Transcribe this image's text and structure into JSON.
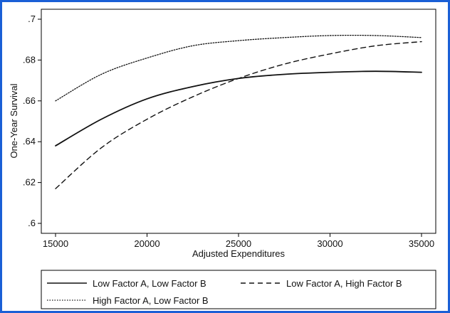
{
  "frame_color": "#1a5fd6",
  "chart_data": {
    "type": "line",
    "title": "",
    "xlabel": "Adjusted Expenditures",
    "ylabel": "One-Year Survival",
    "xlim": [
      15000,
      35000
    ],
    "ylim": [
      0.6,
      0.7
    ],
    "xticks": [
      15000,
      20000,
      25000,
      30000,
      35000
    ],
    "xtick_labels": [
      "15000",
      "20000",
      "25000",
      "30000",
      "35000"
    ],
    "yticks": [
      0.6,
      0.62,
      0.64,
      0.66,
      0.68,
      0.7
    ],
    "ytick_labels": [
      ".6",
      ".62",
      ".64",
      ".66",
      ".68",
      ".7"
    ],
    "grid": false,
    "legend_position": "bottom",
    "x": [
      15000,
      17500,
      20000,
      22500,
      25000,
      27500,
      30000,
      32500,
      35000
    ],
    "series": [
      {
        "name": "Low Factor A, Low Factor B",
        "style": "solid",
        "values": [
          0.638,
          0.651,
          0.661,
          0.667,
          0.671,
          0.673,
          0.674,
          0.6745,
          0.674
        ]
      },
      {
        "name": "Low Factor A, High Factor B",
        "style": "dashed",
        "values": [
          0.617,
          0.637,
          0.651,
          0.662,
          0.671,
          0.678,
          0.683,
          0.687,
          0.689
        ]
      },
      {
        "name": "High Factor A, Low Factor B",
        "style": "dotted",
        "values": [
          0.66,
          0.673,
          0.681,
          0.687,
          0.6895,
          0.691,
          0.692,
          0.692,
          0.691
        ]
      }
    ]
  }
}
